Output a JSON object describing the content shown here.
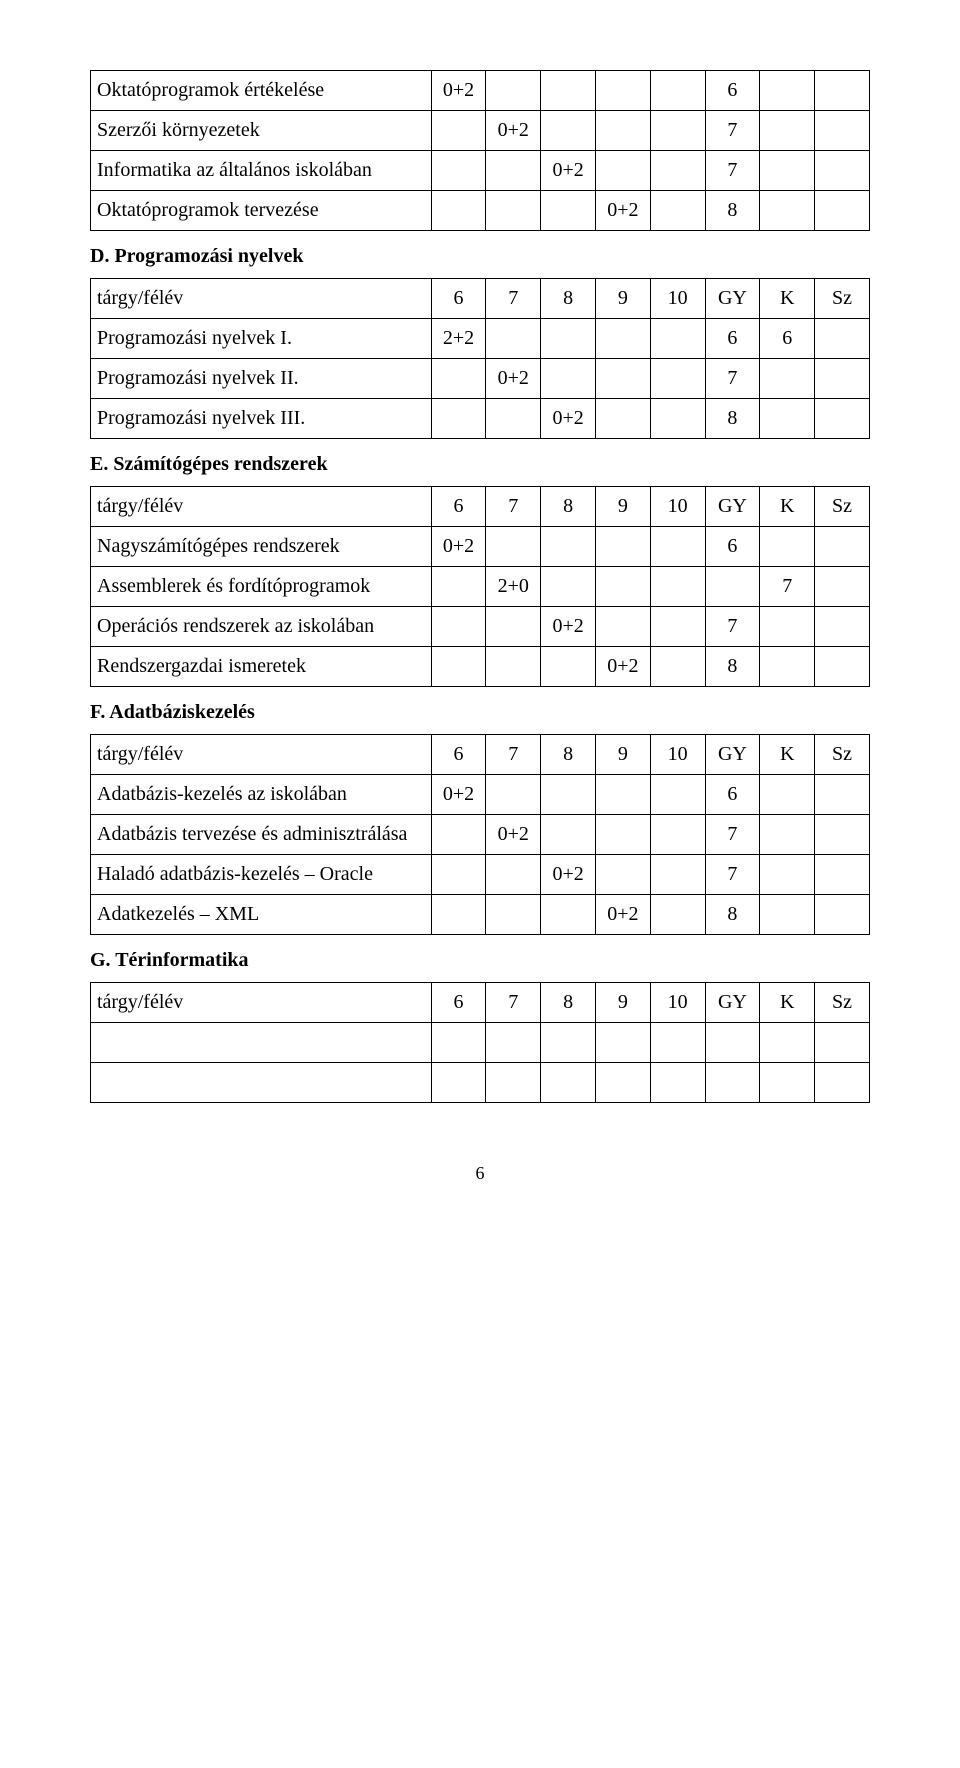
{
  "sections": {
    "sectionC": {
      "rows": [
        {
          "label": "Oktatóprogramok értékelése",
          "c": [
            "0+2",
            "",
            "",
            "",
            "",
            "6",
            "",
            ""
          ]
        },
        {
          "label": "Szerzői környezetek",
          "c": [
            "",
            "0+2",
            "",
            "",
            "",
            "7",
            "",
            ""
          ]
        },
        {
          "label": "Informatika az általános iskolában",
          "c": [
            "",
            "",
            "0+2",
            "",
            "",
            "7",
            "",
            ""
          ]
        },
        {
          "label": "Oktatóprogramok tervezése",
          "c": [
            "",
            "",
            "",
            "0+2",
            "",
            "8",
            "",
            ""
          ]
        }
      ]
    },
    "sectionD": {
      "heading": "D. Programozási nyelvek",
      "header": [
        "tárgy/félév",
        "6",
        "7",
        "8",
        "9",
        "10",
        "GY",
        "K",
        "Sz"
      ],
      "rows": [
        {
          "label": "Programozási nyelvek I.",
          "c": [
            "2+2",
            "",
            "",
            "",
            "",
            "6",
            "6",
            ""
          ]
        },
        {
          "label": "Programozási nyelvek II.",
          "c": [
            "",
            "0+2",
            "",
            "",
            "",
            "7",
            "",
            ""
          ]
        },
        {
          "label": "Programozási nyelvek III.",
          "c": [
            "",
            "",
            "0+2",
            "",
            "",
            "8",
            "",
            ""
          ]
        }
      ]
    },
    "sectionE": {
      "heading": "E. Számítógépes rendszerek",
      "header": [
        "tárgy/félév",
        "6",
        "7",
        "8",
        "9",
        "10",
        "GY",
        "K",
        "Sz"
      ],
      "rows": [
        {
          "label": "Nagyszámítógépes rendszerek",
          "c": [
            "0+2",
            "",
            "",
            "",
            "",
            "6",
            "",
            ""
          ]
        },
        {
          "label": "Assemblerek és fordítóprogramok",
          "c": [
            "",
            "2+0",
            "",
            "",
            "",
            "",
            "7",
            ""
          ]
        },
        {
          "label": "Operációs rendszerek az iskolában",
          "c": [
            "",
            "",
            "0+2",
            "",
            "",
            "7",
            "",
            ""
          ]
        },
        {
          "label": "Rendszergazdai ismeretek",
          "c": [
            "",
            "",
            "",
            "0+2",
            "",
            "8",
            "",
            ""
          ]
        }
      ]
    },
    "sectionF": {
      "heading": "F. Adatbáziskezelés",
      "header": [
        "tárgy/félév",
        "6",
        "7",
        "8",
        "9",
        "10",
        "GY",
        "K",
        "Sz"
      ],
      "rows": [
        {
          "label": "Adatbázis-kezelés az iskolában",
          "c": [
            "0+2",
            "",
            "",
            "",
            "",
            "6",
            "",
            ""
          ]
        },
        {
          "label": "Adatbázis tervezése és adminisztrálása",
          "c": [
            "",
            "0+2",
            "",
            "",
            "",
            "7",
            "",
            ""
          ]
        },
        {
          "label": "Haladó adatbázis-kezelés – Oracle",
          "c": [
            "",
            "",
            "0+2",
            "",
            "",
            "7",
            "",
            ""
          ]
        },
        {
          "label": "Adatkezelés – XML",
          "c": [
            "",
            "",
            "",
            "0+2",
            "",
            "8",
            "",
            ""
          ]
        }
      ]
    },
    "sectionG": {
      "heading": "G. Térinformatika",
      "header": [
        "tárgy/félév",
        "6",
        "7",
        "8",
        "9",
        "10",
        "GY",
        "K",
        "Sz"
      ],
      "rows": [
        {
          "label": "",
          "c": [
            "",
            "",
            "",
            "",
            "",
            "",
            "",
            ""
          ]
        },
        {
          "label": "",
          "c": [
            "",
            "",
            "",
            "",
            "",
            "",
            "",
            ""
          ]
        }
      ]
    }
  },
  "pageNumber": "6"
}
